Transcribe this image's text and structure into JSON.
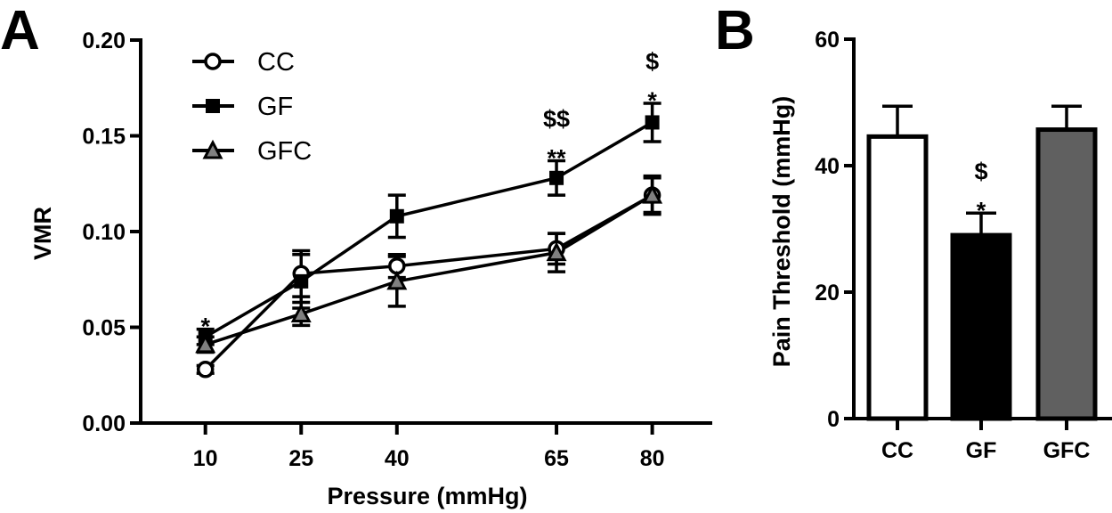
{
  "chart_data": [
    {
      "panel": "A",
      "type": "line",
      "title": "",
      "xlabel": "Pressure (mmHg)",
      "ylabel": "VMR",
      "x": [
        10,
        25,
        40,
        65,
        80
      ],
      "xticks": [
        "10",
        "25",
        "40",
        "65",
        "80"
      ],
      "yticks": [
        "0.00",
        "0.05",
        "0.10",
        "0.15",
        "0.20"
      ],
      "ytick_values": [
        0.0,
        0.05,
        0.1,
        0.15,
        0.2
      ],
      "ylim": [
        0,
        0.2
      ],
      "xlim": [
        0,
        90
      ],
      "grid": false,
      "legend_position": "top-left",
      "series": [
        {
          "name": "CC",
          "marker": "open-circle",
          "fill": "#ffffff",
          "values": [
            0.028,
            0.078,
            0.082,
            0.091,
            0.119
          ],
          "err": [
            0.002,
            0.012,
            0.006,
            0.008,
            0.009
          ]
        },
        {
          "name": "GF",
          "marker": "filled-square",
          "fill": "#000000",
          "values": [
            0.045,
            0.074,
            0.108,
            0.128,
            0.157
          ],
          "err": [
            0.004,
            0.014,
            0.011,
            0.009,
            0.01
          ]
        },
        {
          "name": "GFC",
          "marker": "gray-triangle",
          "fill": "#808080",
          "values": [
            0.041,
            0.057,
            0.074,
            0.089,
            0.119
          ],
          "err": [
            0.004,
            0.006,
            0.013,
            0.01,
            0.01
          ]
        }
      ],
      "annotations": [
        {
          "x": 10,
          "series": "GF",
          "lines": [
            "*"
          ]
        },
        {
          "x": 65,
          "series": "GF",
          "lines": [
            "$$",
            "**"
          ]
        },
        {
          "x": 80,
          "series": "GF",
          "lines": [
            "$",
            "*"
          ]
        }
      ]
    },
    {
      "panel": "B",
      "type": "bar",
      "title": "",
      "xlabel": "",
      "ylabel": "Pain Threshold (mmHg)",
      "categories": [
        "CC",
        "GF",
        "GFC"
      ],
      "values": [
        44.6,
        29.0,
        45.7
      ],
      "err": [
        4.8,
        3.5,
        3.7
      ],
      "colors": [
        "#ffffff",
        "#000000",
        "#606060"
      ],
      "yticks": [
        "0",
        "20",
        "40",
        "60"
      ],
      "ytick_values": [
        0,
        20,
        40,
        60
      ],
      "ylim": [
        0,
        60
      ],
      "grid": false,
      "annotations": [
        {
          "category": "GF",
          "lines": [
            "$",
            "*"
          ]
        }
      ]
    }
  ]
}
